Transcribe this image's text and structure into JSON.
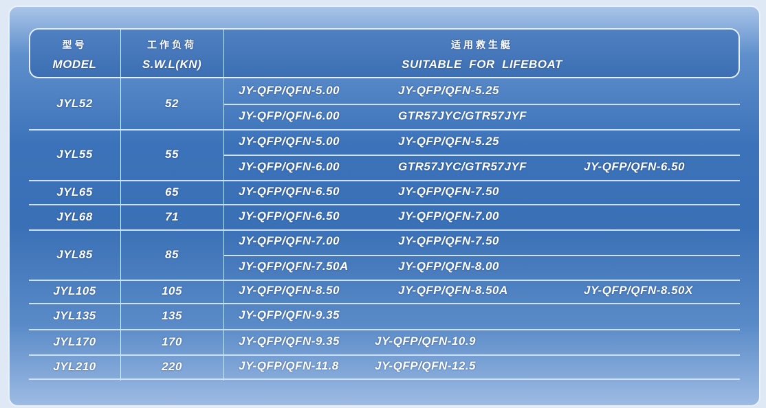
{
  "header": {
    "model_zh": "型号",
    "model_en": "MODEL",
    "swl_zh": "工作负荷",
    "swl_en": "S.W.L(KN)",
    "lifeboat_zh": "适用救生艇",
    "lifeboat_en": "SUITABLE  FOR  LIFEBOAT"
  },
  "rows": [
    {
      "model": "JYL52",
      "swl": "52",
      "lines": [
        [
          "JY-QFP/QFN-5.00",
          "JY-QFP/QFN-5.25"
        ],
        [
          "JY-QFP/QFN-6.00",
          "GTR57JYC/GTR57JYF"
        ]
      ]
    },
    {
      "model": "JYL55",
      "swl": "55",
      "lines": [
        [
          "JY-QFP/QFN-5.00",
          "JY-QFP/QFN-5.25"
        ],
        [
          "JY-QFP/QFN-6.00",
          "GTR57JYC/GTR57JYF",
          "JY-QFP/QFN-6.50"
        ]
      ]
    },
    {
      "model": "JYL65",
      "swl": "65",
      "lines": [
        [
          "JY-QFP/QFN-6.50",
          "JY-QFP/QFN-7.50"
        ]
      ]
    },
    {
      "model": "JYL68",
      "swl": "71",
      "lines": [
        [
          "JY-QFP/QFN-6.50",
          "JY-QFP/QFN-7.00"
        ]
      ]
    },
    {
      "model": "JYL85",
      "swl": "85",
      "lines": [
        [
          "JY-QFP/QFN-7.00",
          "JY-QFP/QFN-7.50"
        ],
        [
          "JY-QFP/QFN-7.50A",
          "JY-QFP/QFN-8.00"
        ]
      ]
    },
    {
      "model": "JYL105",
      "swl": "105",
      "lines": [
        [
          "JY-QFP/QFN-8.50",
          "JY-QFP/QFN-8.50A",
          "JY-QFP/QFN-8.50X"
        ]
      ]
    },
    {
      "model": "JYL135",
      "swl": "135",
      "lines": [
        [
          "JY-QFP/QFN-9.35"
        ]
      ]
    },
    {
      "model": "JYL170",
      "swl": "170",
      "lines": [
        [
          "JY-QFP/QFN-9.35",
          "JY-QFP/QFN-10.9"
        ]
      ]
    },
    {
      "model": "JYL210",
      "swl": "220",
      "lines": [
        [
          "JY-QFP/QFN-11.8",
          "JY-QFP/QFN-12.5"
        ]
      ]
    }
  ]
}
